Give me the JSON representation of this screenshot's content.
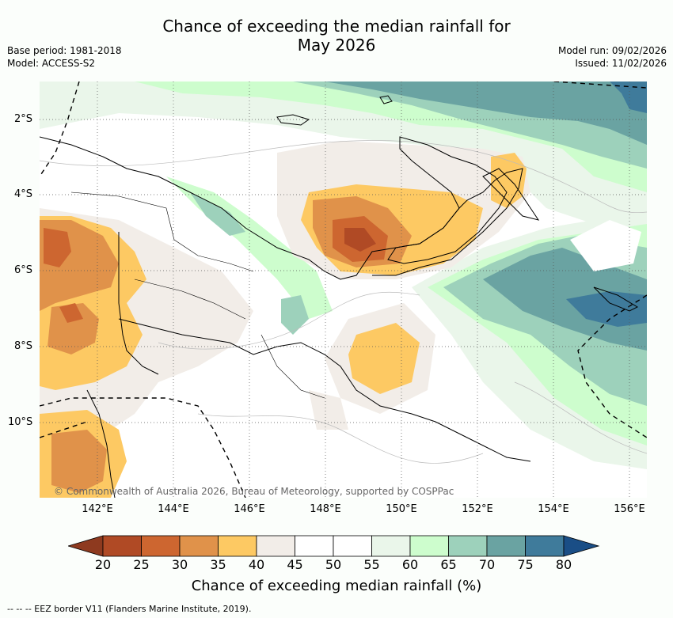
{
  "header": {
    "title_line1": "Chance of exceeding the median rainfall for",
    "title_line2": "May 2026",
    "base_period": "Base period: 1981-2018",
    "model": "Model: ACCESS-S2",
    "model_run": "Model run: 09/02/2026",
    "issued": "Issued: 11/02/2026"
  },
  "map": {
    "lat_labels": [
      "2°S",
      "4°S",
      "6°S",
      "8°S",
      "10°S"
    ],
    "lon_labels": [
      "142°E",
      "144°E",
      "146°E",
      "148°E",
      "150°E",
      "152°E",
      "154°E",
      "156°E"
    ],
    "copyright": "© Commonwealth of Australia 2026, Bureau of Meteorology, supported by COSPPac"
  },
  "legend": {
    "ticks": [
      "20",
      "25",
      "30",
      "35",
      "40",
      "45",
      "50",
      "55",
      "60",
      "65",
      "70",
      "75",
      "80"
    ],
    "colors": [
      "#8e3a1f",
      "#b04a25",
      "#cd6630",
      "#e0924a",
      "#fdc963",
      "#f2ede8",
      "#ffffff",
      "#ffffff",
      "#eaf6ea",
      "#cdfdcd",
      "#9dd1bb",
      "#6aa3a2",
      "#3f7b9b",
      "#1a4e86"
    ],
    "title": "Chance of exceeding median rainfall (%)",
    "eez_note": "--  --  -- EEZ border V11 (Flanders Marine Institute, 2019)."
  }
}
